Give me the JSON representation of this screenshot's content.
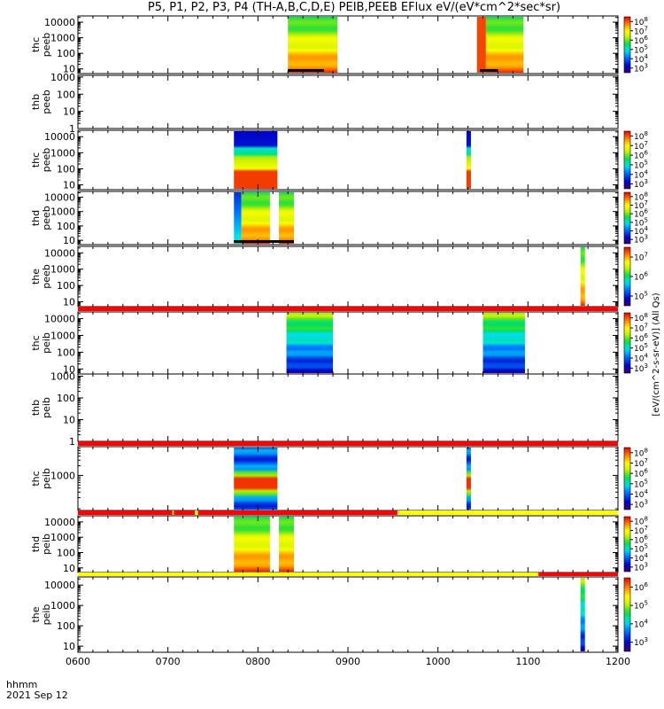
{
  "title": "P5, P1, P2, P3, P4 (TH-A,B,C,D,E) PEIB,PEEB EFlux eV/(eV*cm^2*sec*sr)",
  "footer": {
    "label": "hhmm",
    "date": "2021 Sep 12"
  },
  "colorbar_units": "[eV/(cm^2-s-sr-eV)] (All Qs)",
  "chart_data": {
    "type": "heatmap",
    "x_axis": {
      "range": [
        "0600",
        "1200"
      ],
      "ticks": [
        "0600",
        "0700",
        "0800",
        "0900",
        "1000",
        "1100",
        "1200"
      ]
    },
    "panels": [
      {
        "name": "thc peeb",
        "label": [
          "thc",
          "peeb"
        ],
        "y_ticks": [
          "10",
          "100",
          "1000",
          "10000"
        ],
        "y_log_range": [
          0.7,
          4.4
        ],
        "colorbar": [
          "10^3",
          "10^4",
          "10^5",
          "10^6",
          "10^7",
          "10^8"
        ],
        "data_intervals": [
          {
            "start": "0820",
            "end": "0853",
            "profile": "peeb_warm"
          },
          {
            "start": "1026",
            "end": "1032",
            "profile": "red_low"
          },
          {
            "start": "1032",
            "end": "1057",
            "profile": "peeb_warm"
          }
        ],
        "bottom_line": [
          {
            "start": "0820",
            "end": "0844"
          },
          {
            "start": "1028",
            "end": "1040"
          }
        ]
      },
      {
        "name": "thb peeb",
        "label": [
          "thb",
          "peeb"
        ],
        "y_ticks": [
          "1",
          "10",
          "100",
          "1000"
        ],
        "y_log_range": [
          0,
          3.1
        ],
        "colorbar": [],
        "data_intervals": [],
        "bottom_line": []
      },
      {
        "name": "thc peeb",
        "label": [
          "thc",
          "peeb"
        ],
        "y_ticks": [
          "10",
          "100",
          "1000",
          "10000"
        ],
        "y_log_range": [
          0.7,
          4.4
        ],
        "colorbar": [
          "10^3",
          "10^4",
          "10^5",
          "10^6",
          "10^7",
          "10^8"
        ],
        "data_intervals": [
          {
            "start": "0744",
            "end": "0813",
            "profile": "peeb_cold"
          },
          {
            "start": "1019",
            "end": "1022",
            "profile": "peeb_cold"
          }
        ],
        "bottom_line": []
      },
      {
        "name": "thd peeb",
        "label": [
          "thd",
          "peeb"
        ],
        "y_ticks": [
          "10",
          "100",
          "1000",
          "10000"
        ],
        "y_log_range": [
          0.7,
          4.4
        ],
        "colorbar": [
          "10^3",
          "10^4",
          "10^5",
          "10^6",
          "10^7",
          "10^8"
        ],
        "data_intervals": [
          {
            "start": "0744",
            "end": "0749",
            "profile": "blue_cold"
          },
          {
            "start": "0749",
            "end": "0808",
            "profile": "peeb_warm"
          },
          {
            "start": "0814",
            "end": "0824",
            "profile": "peeb_warm"
          }
        ],
        "bottom_line": [
          {
            "start": "0744",
            "end": "0824"
          }
        ]
      },
      {
        "name": "the peeb",
        "label": [
          "the",
          "peeb"
        ],
        "y_ticks": [
          "10",
          "100",
          "1000",
          "10000"
        ],
        "y_log_range": [
          0.7,
          4.4
        ],
        "colorbar": [
          "10^5",
          "10^6",
          "10^7"
        ],
        "data_intervals": [
          {
            "start": "1135",
            "end": "1138",
            "profile": "peeb_warm"
          }
        ],
        "bottom_line": []
      },
      {
        "name": "thc peib",
        "label": [
          "thc",
          "peib"
        ],
        "y_ticks": [
          "10",
          "100",
          "1000",
          "10000"
        ],
        "y_log_range": [
          0.7,
          4.4
        ],
        "colorbar": [
          "10^3",
          "10^4",
          "10^5",
          "10^6",
          "10^7",
          "10^8"
        ],
        "data_intervals": [
          {
            "start": "0819",
            "end": "0850",
            "profile": "peib"
          },
          {
            "start": "1030",
            "end": "1058",
            "profile": "peib"
          }
        ],
        "flag_bar": [
          {
            "start": "0600",
            "end": "1200",
            "color": "#ff0000"
          }
        ]
      },
      {
        "name": "thb peib",
        "label": [
          "thb",
          "peib"
        ],
        "y_ticks": [
          "1",
          "10",
          "100",
          "1000"
        ],
        "y_log_range": [
          0,
          3.1
        ],
        "colorbar": [],
        "data_intervals": []
      },
      {
        "name": "thc peib",
        "label": [
          "thc",
          "peib"
        ],
        "y_ticks": [
          "1000"
        ],
        "y_log_range": [
          1.9,
          3.9
        ],
        "colorbar": [
          "10^3",
          "10^4",
          "10^5",
          "10^6",
          "10^7",
          "10^8"
        ],
        "data_intervals": [
          {
            "start": "0744",
            "end": "0813",
            "profile": "peib_band"
          },
          {
            "start": "1019",
            "end": "1022",
            "profile": "peib_band"
          }
        ],
        "flag_bar": [
          {
            "start": "0600",
            "end": "1200",
            "color": "#ff0000"
          }
        ]
      },
      {
        "name": "thd peib",
        "label": [
          "thd",
          "peib"
        ],
        "y_ticks": [
          "10",
          "100",
          "1000",
          "10000"
        ],
        "y_log_range": [
          0.7,
          4.4
        ],
        "colorbar": [
          "10^3",
          "10^4",
          "10^5",
          "10^6",
          "10^7",
          "10^8"
        ],
        "data_intervals": [
          {
            "start": "0744",
            "end": "0808",
            "profile": "peeb_warm"
          },
          {
            "start": "0814",
            "end": "0824",
            "profile": "peeb_warm"
          }
        ],
        "flag_bar": [
          {
            "start": "0600",
            "end": "0703",
            "color": "#ff0000"
          },
          {
            "start": "0703",
            "end": "0704",
            "color": "#ffff00"
          },
          {
            "start": "0704",
            "end": "0718",
            "color": "#ff0000"
          },
          {
            "start": "0718",
            "end": "0720",
            "color": "#ffff00"
          },
          {
            "start": "0720",
            "end": "0933",
            "color": "#ff0000"
          },
          {
            "start": "0933",
            "end": "1200",
            "color": "#ffff00"
          }
        ]
      },
      {
        "name": "the peib",
        "label": [
          "the",
          "peib"
        ],
        "y_ticks": [
          "10",
          "100",
          "1000",
          "10000"
        ],
        "y_log_range": [
          0.7,
          4.4
        ],
        "colorbar": [
          "10^3",
          "10^4",
          "10^5",
          "10^6"
        ],
        "data_intervals": [
          {
            "start": "1135",
            "end": "1138",
            "profile": "peib"
          }
        ],
        "flag_bar": [
          {
            "start": "0600",
            "end": "1107",
            "color": "#ffff00"
          },
          {
            "start": "1107",
            "end": "1200",
            "color": "#ff0000"
          }
        ]
      }
    ]
  }
}
